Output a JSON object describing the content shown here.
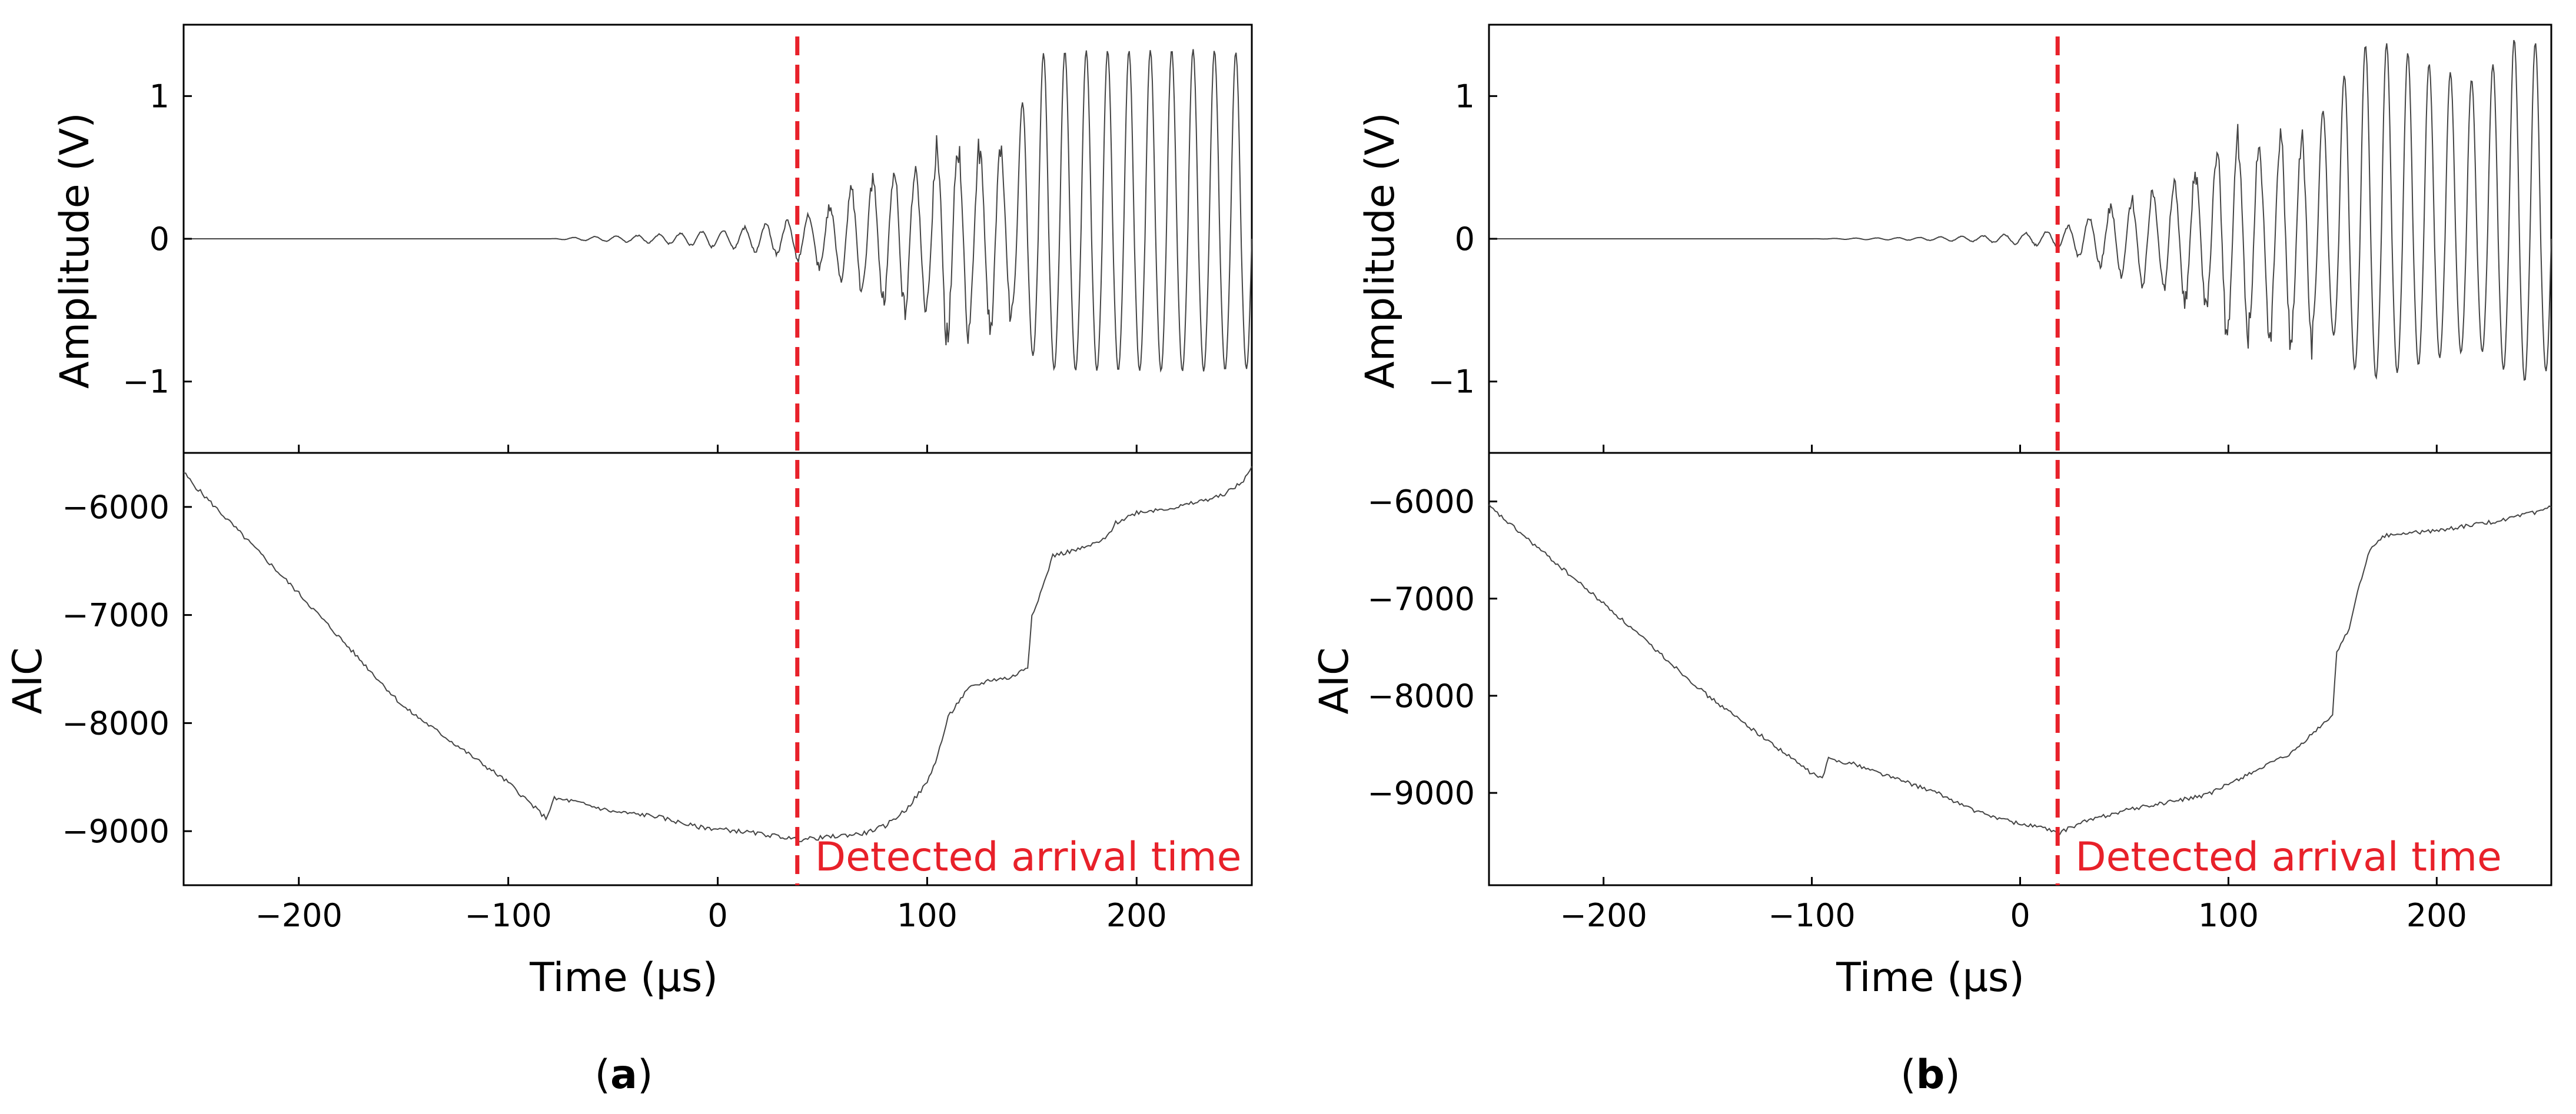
{
  "chart_data": [
    {
      "type": "line",
      "panel_label": "a",
      "title": "",
      "annotation": "Detected arrival time",
      "arrival_time_us": 38,
      "x": {
        "label": "Time (μs)",
        "lim": [
          -255,
          255
        ],
        "ticks": [
          -200,
          -100,
          0,
          100,
          200
        ],
        "tick_labels": [
          "−200",
          "−100",
          "0",
          "100",
          "200"
        ]
      },
      "amplitude": {
        "ylabel": "Amplitude (V)",
        "ylim": [
          -1.5,
          1.5
        ],
        "ticks": [
          -1,
          0,
          1
        ],
        "tick_labels": [
          "−1",
          "0",
          "1"
        ],
        "envelope": [
          [
            -255,
            0
          ],
          [
            -80,
            0
          ],
          [
            -70,
            0.01
          ],
          [
            -50,
            0.02
          ],
          [
            -30,
            0.03
          ],
          [
            -10,
            0.05
          ],
          [
            10,
            0.08
          ],
          [
            30,
            0.12
          ],
          [
            38,
            0.15
          ],
          [
            50,
            0.22
          ],
          [
            70,
            0.42
          ],
          [
            85,
            0.52
          ],
          [
            100,
            0.55
          ],
          [
            108,
            0.78
          ],
          [
            115,
            0.7
          ],
          [
            130,
            0.68
          ],
          [
            140,
            0.65
          ],
          [
            148,
            1.1
          ],
          [
            155,
            1.3
          ],
          [
            170,
            1.32
          ],
          [
            200,
            1.32
          ],
          [
            230,
            1.33
          ],
          [
            255,
            1.3
          ]
        ],
        "period_us": 10.2
      },
      "aic": {
        "ylabel": "AIC",
        "ylim": [
          -9500,
          -5500
        ],
        "ticks": [
          -9000,
          -8000,
          -7000,
          -6000
        ],
        "tick_labels": [
          "−9000",
          "−8000",
          "−7000",
          "−6000"
        ],
        "curve": [
          [
            -255,
            -5680
          ],
          [
            -250,
            -5800
          ],
          [
            -200,
            -6800
          ],
          [
            -150,
            -7850
          ],
          [
            -100,
            -8550
          ],
          [
            -82,
            -8880
          ],
          [
            -78,
            -8700
          ],
          [
            -70,
            -8720
          ],
          [
            -50,
            -8820
          ],
          [
            -30,
            -8860
          ],
          [
            -10,
            -8960
          ],
          [
            10,
            -9000
          ],
          [
            30,
            -9050
          ],
          [
            38,
            -9080
          ],
          [
            50,
            -9060
          ],
          [
            70,
            -9020
          ],
          [
            80,
            -8950
          ],
          [
            90,
            -8800
          ],
          [
            100,
            -8550
          ],
          [
            105,
            -8300
          ],
          [
            110,
            -7950
          ],
          [
            115,
            -7800
          ],
          [
            120,
            -7680
          ],
          [
            130,
            -7600
          ],
          [
            140,
            -7580
          ],
          [
            148,
            -7480
          ],
          [
            150,
            -7000
          ],
          [
            155,
            -6750
          ],
          [
            160,
            -6450
          ],
          [
            175,
            -6380
          ],
          [
            185,
            -6300
          ],
          [
            190,
            -6150
          ],
          [
            200,
            -6050
          ],
          [
            220,
            -6000
          ],
          [
            240,
            -5900
          ],
          [
            250,
            -5780
          ],
          [
            255,
            -5640
          ]
        ]
      }
    },
    {
      "type": "line",
      "panel_label": "b",
      "title": "",
      "annotation": "Detected arrival time",
      "arrival_time_us": 18,
      "x": {
        "label": "Time (μs)",
        "lim": [
          -255,
          255
        ],
        "ticks": [
          -200,
          -100,
          0,
          100,
          200
        ],
        "tick_labels": [
          "−200",
          "−100",
          "0",
          "100",
          "200"
        ]
      },
      "amplitude": {
        "ylabel": "Amplitude (V)",
        "ylim": [
          -1.5,
          1.5
        ],
        "ticks": [
          -1,
          0,
          1
        ],
        "tick_labels": [
          "−1",
          "0",
          "1"
        ],
        "envelope": [
          [
            -255,
            0
          ],
          [
            -100,
            0
          ],
          [
            -80,
            0.005
          ],
          [
            -50,
            0.01
          ],
          [
            -20,
            0.02
          ],
          [
            0,
            0.04
          ],
          [
            18,
            0.06
          ],
          [
            30,
            0.15
          ],
          [
            45,
            0.25
          ],
          [
            55,
            0.3
          ],
          [
            70,
            0.38
          ],
          [
            90,
            0.55
          ],
          [
            100,
            0.78
          ],
          [
            110,
            0.7
          ],
          [
            120,
            0.72
          ],
          [
            135,
            0.78
          ],
          [
            150,
            0.95
          ],
          [
            160,
            1.3
          ],
          [
            170,
            1.4
          ],
          [
            180,
            1.35
          ],
          [
            200,
            1.2
          ],
          [
            220,
            1.1
          ],
          [
            240,
            1.45
          ],
          [
            255,
            1.3
          ]
        ],
        "period_us": 10.2
      },
      "aic": {
        "ylabel": "AIC",
        "ylim": [
          -9950,
          -5500
        ],
        "ticks": [
          -9000,
          -8000,
          -7000,
          -6000
        ],
        "tick_labels": [
          "−9000",
          "−8000",
          "−7000",
          "−6000"
        ],
        "curve": [
          [
            -255,
            -6050
          ],
          [
            -200,
            -7050
          ],
          [
            -150,
            -8000
          ],
          [
            -100,
            -8800
          ],
          [
            -95,
            -8850
          ],
          [
            -92,
            -8650
          ],
          [
            -80,
            -8700
          ],
          [
            -60,
            -8850
          ],
          [
            -40,
            -9000
          ],
          [
            -20,
            -9200
          ],
          [
            0,
            -9320
          ],
          [
            10,
            -9350
          ],
          [
            18,
            -9420
          ],
          [
            30,
            -9300
          ],
          [
            50,
            -9180
          ],
          [
            70,
            -9100
          ],
          [
            90,
            -9020
          ],
          [
            110,
            -8800
          ],
          [
            130,
            -8600
          ],
          [
            140,
            -8400
          ],
          [
            150,
            -8200
          ],
          [
            152,
            -7550
          ],
          [
            158,
            -7300
          ],
          [
            163,
            -6850
          ],
          [
            168,
            -6500
          ],
          [
            175,
            -6350
          ],
          [
            200,
            -6300
          ],
          [
            230,
            -6200
          ],
          [
            250,
            -6100
          ],
          [
            255,
            -6050
          ]
        ]
      }
    }
  ]
}
